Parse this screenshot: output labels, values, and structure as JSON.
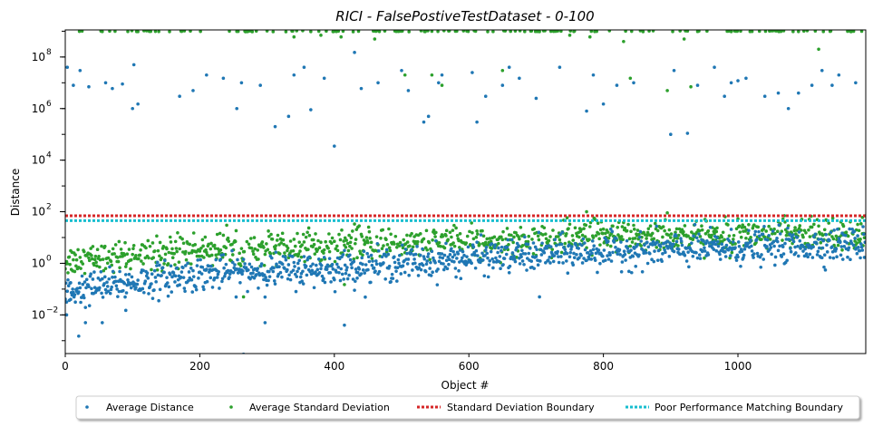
{
  "chart_data": {
    "type": "scatter",
    "title": "RICI - FalsePostiveTestDataset - 0-100",
    "xlabel": "Object #",
    "ylabel": "Distance",
    "xlim": [
      0,
      1190
    ],
    "ylim_log10": [
      -3.5,
      9.05
    ],
    "yscale": "log",
    "grid": false,
    "x_ticks": [
      0,
      200,
      400,
      600,
      800,
      1000
    ],
    "x_tick_labels": [
      "0",
      "200",
      "400",
      "600",
      "800",
      "1000"
    ],
    "y_ticks_log10": [
      -2,
      0,
      2,
      4,
      6,
      8
    ],
    "y_tick_labels": [
      "10",
      "10",
      "10",
      "10",
      "10",
      "10"
    ],
    "y_tick_exponents": [
      "−2",
      "0",
      "2",
      "4",
      "6",
      "8"
    ],
    "n_points": 1190,
    "legend_placement": "bottom-center",
    "series": [
      {
        "name": "Average Distance",
        "kind": "points",
        "color": "#1f77b4",
        "typical_log10_range": [
          -1.0,
          1.3
        ],
        "trend_log10": [
          [
            0,
            -1.1
          ],
          [
            200,
            -0.4
          ],
          [
            400,
            -0.2
          ],
          [
            600,
            0.2
          ],
          [
            800,
            0.45
          ],
          [
            1000,
            0.6
          ],
          [
            1190,
            0.75
          ]
        ],
        "outliers": [
          {
            "x": 3,
            "y": 40000000
          },
          {
            "x": 12,
            "y": 8000000
          },
          {
            "x": 22,
            "y": 30000000
          },
          {
            "x": 35,
            "y": 7000000
          },
          {
            "x": 60,
            "y": 10000000
          },
          {
            "x": 70,
            "y": 6000000
          },
          {
            "x": 85,
            "y": 9000000
          },
          {
            "x": 100,
            "y": 1000000
          },
          {
            "x": 102,
            "y": 50000000
          },
          {
            "x": 108,
            "y": 1500000
          },
          {
            "x": 170,
            "y": 3000000
          },
          {
            "x": 190,
            "y": 5000000
          },
          {
            "x": 210,
            "y": 20000000
          },
          {
            "x": 235,
            "y": 15000000
          },
          {
            "x": 255,
            "y": 1000000
          },
          {
            "x": 262,
            "y": 10000000
          },
          {
            "x": 290,
            "y": 8000000
          },
          {
            "x": 312,
            "y": 200000
          },
          {
            "x": 332,
            "y": 500000
          },
          {
            "x": 340,
            "y": 20000000
          },
          {
            "x": 355,
            "y": 40000000
          },
          {
            "x": 365,
            "y": 900000
          },
          {
            "x": 385,
            "y": 15000000
          },
          {
            "x": 400,
            "y": 35000
          },
          {
            "x": 430,
            "y": 150000000
          },
          {
            "x": 440,
            "y": 6000000
          },
          {
            "x": 465,
            "y": 10000000
          },
          {
            "x": 500,
            "y": 30000000
          },
          {
            "x": 510,
            "y": 5000000
          },
          {
            "x": 533,
            "y": 300000
          },
          {
            "x": 540,
            "y": 500000
          },
          {
            "x": 555,
            "y": 10000000
          },
          {
            "x": 560,
            "y": 20000000
          },
          {
            "x": 605,
            "y": 25000000
          },
          {
            "x": 612,
            "y": 300000
          },
          {
            "x": 625,
            "y": 3000000
          },
          {
            "x": 650,
            "y": 8000000
          },
          {
            "x": 660,
            "y": 40000000
          },
          {
            "x": 675,
            "y": 15000000
          },
          {
            "x": 700,
            "y": 2500000
          },
          {
            "x": 735,
            "y": 40000000
          },
          {
            "x": 775,
            "y": 800000
          },
          {
            "x": 785,
            "y": 20000000
          },
          {
            "x": 800,
            "y": 1500000
          },
          {
            "x": 820,
            "y": 8000000
          },
          {
            "x": 845,
            "y": 10000000
          },
          {
            "x": 900,
            "y": 100000
          },
          {
            "x": 905,
            "y": 30000000
          },
          {
            "x": 925,
            "y": 110000
          },
          {
            "x": 940,
            "y": 8000000
          },
          {
            "x": 965,
            "y": 40000000
          },
          {
            "x": 980,
            "y": 3000000
          },
          {
            "x": 990,
            "y": 10000000
          },
          {
            "x": 1000,
            "y": 12000000
          },
          {
            "x": 1012,
            "y": 15000000
          },
          {
            "x": 1040,
            "y": 3000000
          },
          {
            "x": 1060,
            "y": 4000000
          },
          {
            "x": 1075,
            "y": 1000000
          },
          {
            "x": 1090,
            "y": 4000000
          },
          {
            "x": 1110,
            "y": 8000000
          },
          {
            "x": 1125,
            "y": 30000000
          },
          {
            "x": 1140,
            "y": 8000000
          },
          {
            "x": 1150,
            "y": 20000000
          },
          {
            "x": 1175,
            "y": 10000000
          },
          {
            "x": 20,
            "y": 0.0015
          },
          {
            "x": 30,
            "y": 0.005
          },
          {
            "x": 55,
            "y": 0.005
          },
          {
            "x": 90,
            "y": 0.015
          },
          {
            "x": 265,
            "y": 0.0003
          },
          {
            "x": 297,
            "y": 0.005
          },
          {
            "x": 415,
            "y": 0.004
          },
          {
            "x": 705,
            "y": 0.05
          },
          {
            "x": 2,
            "y": 0.01
          },
          {
            "x": 8,
            "y": 0.04
          }
        ]
      },
      {
        "name": "Average Standard Deviation",
        "kind": "points",
        "color": "#2ca02c",
        "typical_log10_range": [
          -0.5,
          1.6
        ],
        "trend_log10": [
          [
            0,
            0.1
          ],
          [
            200,
            0.55
          ],
          [
            400,
            0.7
          ],
          [
            600,
            0.85
          ],
          [
            800,
            1.0
          ],
          [
            1000,
            1.1
          ],
          [
            1190,
            1.2
          ]
        ],
        "capped_value": 1000000000,
        "outliers": [
          {
            "x": 340,
            "y": 600000000
          },
          {
            "x": 380,
            "y": 700000000
          },
          {
            "x": 410,
            "y": 600000000
          },
          {
            "x": 460,
            "y": 500000000
          },
          {
            "x": 505,
            "y": 20000000
          },
          {
            "x": 545,
            "y": 20000000
          },
          {
            "x": 560,
            "y": 8000000
          },
          {
            "x": 650,
            "y": 30000000
          },
          {
            "x": 750,
            "y": 700000000
          },
          {
            "x": 780,
            "y": 600000000
          },
          {
            "x": 830,
            "y": 400000000
          },
          {
            "x": 840,
            "y": 15000000
          },
          {
            "x": 895,
            "y": 5000000
          },
          {
            "x": 920,
            "y": 500000000
          },
          {
            "x": 930,
            "y": 7000000
          },
          {
            "x": 1120,
            "y": 200000000
          },
          {
            "x": 265,
            "y": 0.05
          },
          {
            "x": 415,
            "y": 0.15
          },
          {
            "x": 775,
            "y": 100
          },
          {
            "x": 895,
            "y": 90
          },
          {
            "x": 1185,
            "y": 60
          }
        ]
      },
      {
        "name": "Standard Deviation Boundary",
        "kind": "hline",
        "color": "#d62728",
        "y": 70
      },
      {
        "name": "Poor Performance Matching Boundary",
        "kind": "hline",
        "color": "#17becf",
        "y": 45
      }
    ]
  }
}
